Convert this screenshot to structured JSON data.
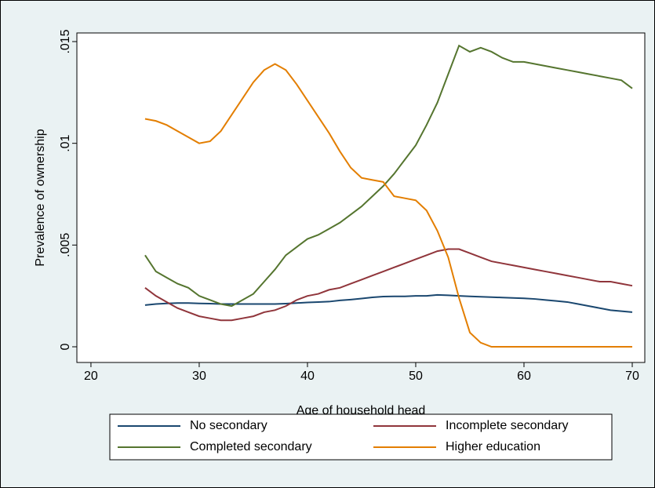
{
  "chart_data": {
    "type": "line",
    "x_label": "Age of household head",
    "y_label": "Prevalence of ownership",
    "x": [
      25,
      26,
      27,
      28,
      29,
      30,
      31,
      32,
      33,
      34,
      35,
      36,
      37,
      38,
      39,
      40,
      41,
      42,
      43,
      44,
      45,
      46,
      47,
      48,
      49,
      50,
      51,
      52,
      53,
      54,
      55,
      56,
      57,
      58,
      59,
      60,
      61,
      62,
      63,
      64,
      65,
      66,
      67,
      68,
      69,
      70
    ],
    "series": [
      {
        "name": "No secondary",
        "color": "#1a476f",
        "values": [
          0.00205,
          0.0021,
          0.00213,
          0.00215,
          0.00215,
          0.00213,
          0.00212,
          0.0021,
          0.0021,
          0.0021,
          0.0021,
          0.0021,
          0.0021,
          0.00212,
          0.00215,
          0.00218,
          0.0022,
          0.00222,
          0.00228,
          0.00232,
          0.00237,
          0.00243,
          0.00247,
          0.00248,
          0.00248,
          0.0025,
          0.0025,
          0.00255,
          0.00253,
          0.0025,
          0.00248,
          0.00246,
          0.00244,
          0.00242,
          0.0024,
          0.00238,
          0.00235,
          0.0023,
          0.00225,
          0.0022,
          0.0021,
          0.002,
          0.0019,
          0.0018,
          0.00175,
          0.0017
        ]
      },
      {
        "name": "Incomplete secondary",
        "color": "#90353b",
        "values": [
          0.0029,
          0.0025,
          0.0022,
          0.0019,
          0.0017,
          0.0015,
          0.0014,
          0.0013,
          0.0013,
          0.0014,
          0.0015,
          0.0017,
          0.0018,
          0.002,
          0.0023,
          0.0025,
          0.0026,
          0.0028,
          0.0029,
          0.0031,
          0.0033,
          0.0035,
          0.0037,
          0.0039,
          0.0041,
          0.0043,
          0.0045,
          0.0047,
          0.0048,
          0.0048,
          0.0046,
          0.0044,
          0.0042,
          0.0041,
          0.004,
          0.0039,
          0.0038,
          0.0037,
          0.0036,
          0.0035,
          0.0034,
          0.0033,
          0.0032,
          0.0032,
          0.0031,
          0.003
        ]
      },
      {
        "name": "Completed secondary",
        "color": "#55752f",
        "values": [
          0.0045,
          0.0037,
          0.0034,
          0.0031,
          0.0029,
          0.0025,
          0.0023,
          0.0021,
          0.002,
          0.0023,
          0.0026,
          0.0032,
          0.0038,
          0.0045,
          0.0049,
          0.0053,
          0.0055,
          0.0058,
          0.0061,
          0.0065,
          0.0069,
          0.0074,
          0.0079,
          0.0085,
          0.0092,
          0.0099,
          0.0109,
          0.012,
          0.0134,
          0.0148,
          0.0145,
          0.0147,
          0.0145,
          0.0142,
          0.014,
          0.014,
          0.0139,
          0.0138,
          0.0137,
          0.0136,
          0.0135,
          0.0134,
          0.0133,
          0.0132,
          0.0131,
          0.0127
        ]
      },
      {
        "name": "Higher education",
        "color": "#e37e00",
        "values": [
          0.0112,
          0.0111,
          0.0109,
          0.0106,
          0.0103,
          0.01,
          0.0101,
          0.0106,
          0.0114,
          0.0122,
          0.013,
          0.0136,
          0.0139,
          0.0136,
          0.0129,
          0.0121,
          0.0113,
          0.0105,
          0.0096,
          0.0088,
          0.0083,
          0.0082,
          0.0081,
          0.0074,
          0.0073,
          0.0072,
          0.0067,
          0.0057,
          0.0044,
          0.0024,
          0.0007,
          0.0002,
          0,
          0,
          0,
          0,
          0,
          0,
          0,
          0,
          0,
          0,
          0,
          0,
          0,
          0
        ]
      }
    ],
    "xlim": [
      18.7,
      71.16
    ],
    "xticks": [
      20,
      30,
      40,
      50,
      60,
      70
    ],
    "ylim": [
      -0.000771,
      0.015424
    ],
    "yticks": [
      0,
      {
        "value": 0.005,
        "label": ".005"
      },
      {
        "value": 0.01,
        "label": ".01"
      },
      {
        "value": 0.015,
        "label": ".015"
      }
    ],
    "grid": false
  }
}
